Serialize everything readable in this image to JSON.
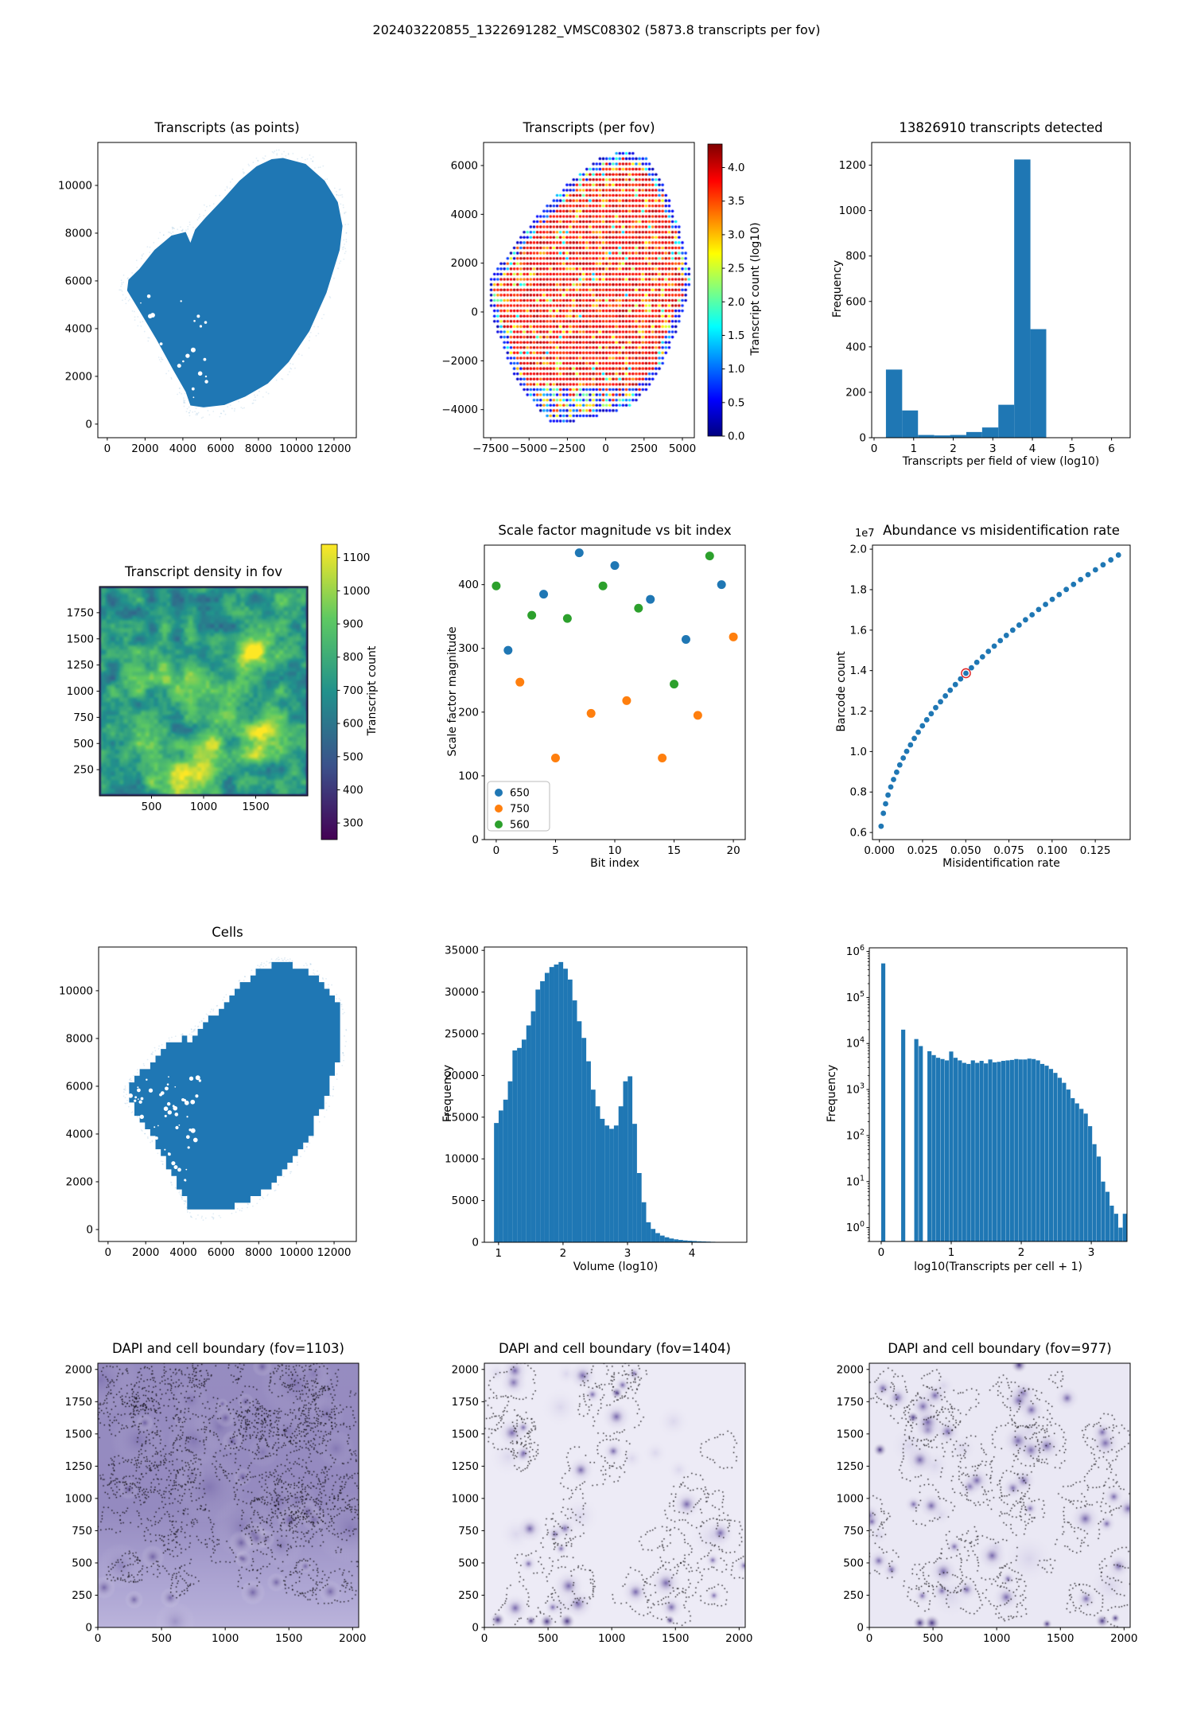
{
  "figure": {
    "title": "202403220855_1322691282_VMSC08302 (5873.8 transcripts per fov)"
  },
  "chart_data": [
    {
      "type": "silhouette",
      "title": "Transcripts (as points)",
      "xlim": [
        -500,
        13180
      ],
      "ylim": [
        -570,
        11800
      ],
      "xticks": [
        0,
        2000,
        4000,
        6000,
        8000,
        10000,
        12000
      ],
      "yticks": [
        0,
        2000,
        4000,
        6000,
        8000,
        10000
      ],
      "color": "#1f77b4",
      "polygon": [
        [
          9300,
          11150
        ],
        [
          10500,
          10900
        ],
        [
          11500,
          10200
        ],
        [
          12200,
          9300
        ],
        [
          12450,
          8300
        ],
        [
          12300,
          7300
        ],
        [
          11600,
          5500
        ],
        [
          10700,
          3900
        ],
        [
          9600,
          2600
        ],
        [
          8500,
          1700
        ],
        [
          7300,
          1150
        ],
        [
          6200,
          800
        ],
        [
          5100,
          700
        ],
        [
          4400,
          780
        ],
        [
          4150,
          1350
        ],
        [
          3500,
          2250
        ],
        [
          2600,
          3550
        ],
        [
          1700,
          4750
        ],
        [
          1050,
          5600
        ],
        [
          1120,
          6050
        ],
        [
          1700,
          6500
        ],
        [
          2500,
          7300
        ],
        [
          3400,
          7900
        ],
        [
          4150,
          8050
        ],
        [
          4400,
          7600
        ],
        [
          4650,
          8150
        ],
        [
          5200,
          8650
        ],
        [
          6100,
          9400
        ],
        [
          7000,
          10200
        ],
        [
          7900,
          10800
        ],
        [
          8700,
          11100
        ]
      ],
      "holes": {
        "count": 26,
        "region": [
          1700,
          1100,
          5300,
          5600
        ],
        "seed": 11
      },
      "halo": 300
    },
    {
      "type": "fov_dots",
      "title": "Transcripts (per fov)",
      "xlim": [
        -7967,
        5778
      ],
      "ylim": [
        -5152,
        6945
      ],
      "xticks": [
        -7500,
        -5000,
        -2500,
        0,
        2500,
        5000
      ],
      "xtick_labels": [
        "−7500",
        "−5000",
        "−2500",
        "0",
        "2500",
        "5000"
      ],
      "yticks": [
        -4000,
        -2000,
        0,
        2000,
        4000,
        6000
      ],
      "ytick_labels": [
        "−4000",
        "−2000",
        "0",
        "2000",
        "4000",
        "6000"
      ],
      "spacing": 215,
      "seed": 5,
      "polygon": [
        [
          800,
          6560
        ],
        [
          2400,
          6470
        ],
        [
          3300,
          5800
        ],
        [
          4000,
          4800
        ],
        [
          4700,
          3700
        ],
        [
          5300,
          2300
        ],
        [
          5600,
          1300
        ],
        [
          5200,
          400
        ],
        [
          4700,
          -600
        ],
        [
          4200,
          -1500
        ],
        [
          3500,
          -2400
        ],
        [
          2700,
          -3200
        ],
        [
          1700,
          -3800
        ],
        [
          600,
          -4100
        ],
        [
          -700,
          -4300
        ],
        [
          -1900,
          -4420
        ],
        [
          -2900,
          -4680
        ],
        [
          -3700,
          -4480
        ],
        [
          -4400,
          -3950
        ],
        [
          -5200,
          -3350
        ],
        [
          -6000,
          -2500
        ],
        [
          -6600,
          -1600
        ],
        [
          -7200,
          -600
        ],
        [
          -7650,
          500
        ],
        [
          -7550,
          1300
        ],
        [
          -6700,
          2100
        ],
        [
          -5700,
          3000
        ],
        [
          -4500,
          3900
        ],
        [
          -3200,
          4800
        ],
        [
          -1900,
          5600
        ],
        [
          -600,
          6250
        ]
      ],
      "colorbar": {
        "label": "Transcript count (log10)",
        "range": [
          0,
          4.35
        ],
        "cmap": "jet",
        "ticks": [
          0.0,
          0.5,
          1.0,
          1.5,
          2.0,
          2.5,
          3.0,
          3.5,
          4.0
        ],
        "tick_labels": [
          "0.0",
          "0.5",
          "1.0",
          "1.5",
          "2.0",
          "2.5",
          "3.0",
          "3.5",
          "4.0"
        ]
      }
    },
    {
      "type": "hist",
      "title": "13826910 transcripts detected",
      "xlabel": "Transcripts per field of view (log10)",
      "ylabel": "Frequency",
      "xlim": [
        -0.06,
        6.47
      ],
      "ylim": [
        0,
        1300
      ],
      "xticks": [
        0,
        1,
        2,
        3,
        4,
        5,
        6
      ],
      "yticks": [
        0,
        200,
        400,
        600,
        800,
        1000,
        1200
      ],
      "edges": [
        0.3,
        0.71,
        1.11,
        1.52,
        1.92,
        2.33,
        2.73,
        3.14,
        3.54,
        3.95,
        4.35
      ],
      "values": [
        300,
        120,
        12,
        10,
        12,
        25,
        45,
        145,
        1225,
        478
      ],
      "color": "#1f77b4"
    },
    {
      "type": "heatmap",
      "title": "Transcript density in fov",
      "xlim": [
        0,
        2000
      ],
      "ylim": [
        0,
        2000
      ],
      "xticks": [
        500,
        1000,
        1500
      ],
      "yticks": [
        250,
        500,
        750,
        1000,
        1250,
        1500,
        1750
      ],
      "noise": {
        "seed": 42,
        "mean": 720,
        "amp_coarse": 150,
        "amp_fine": 60,
        "blobs": 20
      },
      "range": [
        250,
        1140
      ],
      "cmap": "viridis",
      "colorbar": {
        "label": "Transcript count",
        "range": [
          250,
          1140
        ],
        "cmap": "viridis",
        "ticks": [
          300,
          400,
          500,
          600,
          700,
          800,
          900,
          1000,
          1100
        ]
      }
    },
    {
      "type": "scatter",
      "title": "Scale factor magnitude vs bit index",
      "xlabel": "Bit index",
      "ylabel": "Scale factor magnitude",
      "xlim": [
        -1,
        21
      ],
      "ylim": [
        0,
        462
      ],
      "xticks": [
        0,
        5,
        10,
        15,
        20
      ],
      "yticks": [
        0,
        100,
        200,
        300,
        400
      ],
      "series": [
        {
          "name": "650",
          "color": "#1f77b4",
          "points": [
            [
              1,
              297
            ],
            [
              4,
              385
            ],
            [
              7,
              450
            ],
            [
              10,
              430
            ],
            [
              13,
              377
            ],
            [
              16,
              314
            ],
            [
              19,
              400
            ]
          ]
        },
        {
          "name": "750",
          "color": "#ff7f0e",
          "points": [
            [
              2,
              247
            ],
            [
              5,
              128
            ],
            [
              8,
              198
            ],
            [
              11,
              218
            ],
            [
              14,
              128
            ],
            [
              17,
              195
            ],
            [
              20,
              318
            ]
          ]
        },
        {
          "name": "560",
          "color": "#2ca02c",
          "points": [
            [
              0,
              398
            ],
            [
              3,
              352
            ],
            [
              6,
              347
            ],
            [
              9,
              398
            ],
            [
              12,
              363
            ],
            [
              15,
              244
            ],
            [
              18,
              445
            ]
          ]
        }
      ],
      "legend": [
        "650",
        "750",
        "560"
      ],
      "legend_colors": [
        "#1f77b4",
        "#ff7f0e",
        "#2ca02c"
      ]
    },
    {
      "type": "curve",
      "title": "Abundance vs misidentification rate",
      "xlabel": "Misidentification rate",
      "ylabel": "Barcode count",
      "offset_text": "1e7",
      "xlim": [
        -0.004,
        0.1452
      ],
      "ylim": [
        0.565,
        2.02
      ],
      "xticks": [
        0.0,
        0.025,
        0.05,
        0.075,
        0.1,
        0.125
      ],
      "xtick_labels": [
        "0.000",
        "0.025",
        "0.050",
        "0.075",
        "0.100",
        "0.125"
      ],
      "yticks": [
        0.6,
        0.8,
        1.0,
        1.2,
        1.4,
        1.6,
        1.8,
        2.0
      ],
      "ytick_labels": [
        "0.6",
        "0.8",
        "1.0",
        "1.2",
        "1.4",
        "1.6",
        "1.8",
        "2.0"
      ],
      "color": "#1f77b4",
      "highlight": {
        "index": 22,
        "color": "#e02020"
      },
      "points": [
        [
          0.001,
          0.631
        ],
        [
          0.0023,
          0.695
        ],
        [
          0.0036,
          0.742
        ],
        [
          0.005,
          0.785
        ],
        [
          0.0066,
          0.825
        ],
        [
          0.0082,
          0.862
        ],
        [
          0.01,
          0.898
        ],
        [
          0.0118,
          0.934
        ],
        [
          0.0138,
          0.968
        ],
        [
          0.0158,
          1.001
        ],
        [
          0.018,
          1.033
        ],
        [
          0.0202,
          1.065
        ],
        [
          0.0225,
          1.096
        ],
        [
          0.0249,
          1.127
        ],
        [
          0.0274,
          1.157
        ],
        [
          0.03,
          1.187
        ],
        [
          0.0326,
          1.217
        ],
        [
          0.0354,
          1.246
        ],
        [
          0.0382,
          1.275
        ],
        [
          0.041,
          1.303
        ],
        [
          0.044,
          1.331
        ],
        [
          0.047,
          1.359
        ],
        [
          0.0501,
          1.387
        ],
        [
          0.0533,
          1.414
        ],
        [
          0.0564,
          1.441
        ],
        [
          0.0597,
          1.468
        ],
        [
          0.0631,
          1.495
        ],
        [
          0.0665,
          1.521
        ],
        [
          0.07,
          1.548
        ],
        [
          0.0735,
          1.574
        ],
        [
          0.0772,
          1.6
        ],
        [
          0.0809,
          1.625
        ],
        [
          0.0846,
          1.651
        ],
        [
          0.0884,
          1.676
        ],
        [
          0.0922,
          1.702
        ],
        [
          0.0962,
          1.727
        ],
        [
          0.1001,
          1.752
        ],
        [
          0.1041,
          1.776
        ],
        [
          0.1082,
          1.801
        ],
        [
          0.1124,
          1.826
        ],
        [
          0.1165,
          1.85
        ],
        [
          0.1208,
          1.874
        ],
        [
          0.1251,
          1.898
        ],
        [
          0.1295,
          1.923
        ],
        [
          0.134,
          1.947
        ],
        [
          0.1384,
          1.971
        ]
      ]
    },
    {
      "type": "silhouette",
      "title": "Cells",
      "xlim": [
        -500,
        13180
      ],
      "ylim": [
        -500,
        11830
      ],
      "xticks": [
        0,
        2000,
        4000,
        6000,
        8000,
        10000,
        12000
      ],
      "yticks": [
        0,
        2000,
        4000,
        6000,
        8000,
        10000
      ],
      "color": "#1f77b4",
      "jagged": true,
      "polygon": [
        [
          9300,
          11150
        ],
        [
          10500,
          10900
        ],
        [
          11500,
          10200
        ],
        [
          12200,
          9300
        ],
        [
          12450,
          8300
        ],
        [
          12300,
          7300
        ],
        [
          11600,
          5500
        ],
        [
          10700,
          3900
        ],
        [
          9600,
          2600
        ],
        [
          8500,
          1700
        ],
        [
          7300,
          1150
        ],
        [
          6200,
          800
        ],
        [
          5100,
          700
        ],
        [
          4400,
          780
        ],
        [
          4150,
          1350
        ],
        [
          3500,
          2250
        ],
        [
          2600,
          3550
        ],
        [
          1700,
          4750
        ],
        [
          1050,
          5600
        ],
        [
          1120,
          6050
        ],
        [
          1700,
          6500
        ],
        [
          2500,
          7300
        ],
        [
          3400,
          7900
        ],
        [
          4150,
          8050
        ],
        [
          4400,
          7600
        ],
        [
          4650,
          8150
        ],
        [
          5200,
          8650
        ],
        [
          6100,
          9400
        ],
        [
          7000,
          10200
        ],
        [
          7900,
          10800
        ],
        [
          8700,
          11100
        ]
      ],
      "holes": {
        "count": 85,
        "region": [
          1100,
          1700,
          4900,
          6400
        ],
        "seed": 23
      },
      "halo": 120
    },
    {
      "type": "hist",
      "title": "",
      "xlabel": "Volume (log10)",
      "ylabel": "Frequency",
      "xlim": [
        0.78,
        4.85
      ],
      "ylim": [
        0,
        35400
      ],
      "xticks": [
        1,
        2,
        3,
        4
      ],
      "yticks": [
        0,
        5000,
        10000,
        15000,
        20000,
        25000,
        30000,
        35000
      ],
      "bin_start": 0.93,
      "bin_width": 0.0715,
      "values": [
        14300,
        15800,
        17100,
        19300,
        23000,
        23300,
        24300,
        26000,
        27700,
        30300,
        31300,
        32300,
        33000,
        33300,
        33600,
        32800,
        31500,
        29000,
        26500,
        24500,
        21700,
        18300,
        16300,
        14800,
        14000,
        13600,
        14000,
        16300,
        19300,
        19900,
        14200,
        8300,
        4800,
        2400,
        1600,
        1100,
        800,
        600,
        450,
        350,
        280,
        220,
        180,
        150,
        120,
        100,
        80,
        60,
        45,
        30
      ],
      "color": "#1f77b4"
    },
    {
      "type": "loghist",
      "title": "",
      "xlabel": "log10(Transcripts per cell + 1)",
      "ylabel": "Frequency",
      "xlim": [
        -0.17,
        3.51
      ],
      "ylog": [
        0.5,
        1200000
      ],
      "xticks": [
        0,
        1,
        2,
        3
      ],
      "ydecades": [
        0,
        1,
        2,
        3,
        4,
        5,
        6
      ],
      "bars": [
        [
          0.0,
          550000
        ],
        [
          0.285,
          20000
        ],
        [
          0.472,
          12500
        ],
        [
          0.536,
          8800
        ]
      ],
      "cont_start": 0.66,
      "bin_width": 0.062,
      "values": [
        6800,
        5600,
        4900,
        4600,
        4300,
        6700,
        4900,
        4300,
        3800,
        3600,
        4300,
        3800,
        4200,
        3700,
        4500,
        3900,
        4000,
        4200,
        4300,
        4400,
        4600,
        4500,
        4500,
        4700,
        4600,
        4300,
        3600,
        3300,
        2800,
        2300,
        1800,
        1400,
        1000,
        650,
        500,
        380,
        300,
        160,
        65,
        35,
        10,
        6,
        3,
        2,
        1,
        2
      ],
      "color": "#1f77b4"
    },
    {
      "type": "dapi",
      "title": "DAPI and cell boundary (fov=1103)",
      "fov": "1103",
      "xlim": [
        0,
        2048
      ],
      "ylim": [
        0,
        2048
      ],
      "xticks": [
        0,
        500,
        1000,
        1500,
        2000
      ],
      "yticks": [
        0,
        250,
        500,
        750,
        1000,
        1250,
        1500,
        1750,
        2000
      ],
      "style": "dense",
      "seed": 7,
      "cells": 125,
      "nuclei": 26,
      "dark_spots": 0,
      "bg": "#a89fd0"
    },
    {
      "type": "dapi",
      "title": "DAPI and cell boundary (fov=1404)",
      "fov": "1404",
      "xlim": [
        0,
        2048
      ],
      "ylim": [
        0,
        2048
      ],
      "xticks": [
        0,
        500,
        1000,
        1500,
        2000
      ],
      "yticks": [
        0,
        250,
        500,
        750,
        1000,
        1250,
        1500,
        1750,
        2000
      ],
      "style": "sparse",
      "seed": 13,
      "cells": 40,
      "nuclei": 30,
      "dark_spots": 6,
      "bg": "#edebf6"
    },
    {
      "type": "dapi",
      "title": "DAPI and cell boundary (fov=977)",
      "fov": "977",
      "xlim": [
        0,
        2048
      ],
      "ylim": [
        0,
        2048
      ],
      "xticks": [
        0,
        500,
        1000,
        1500,
        2000
      ],
      "yticks": [
        0,
        250,
        500,
        750,
        1000,
        1250,
        1500,
        1750,
        2000
      ],
      "style": "sparse",
      "seed": 29,
      "cells": 55,
      "nuclei": 42,
      "dark_spots": 8,
      "bg": "#eae8f4"
    }
  ]
}
